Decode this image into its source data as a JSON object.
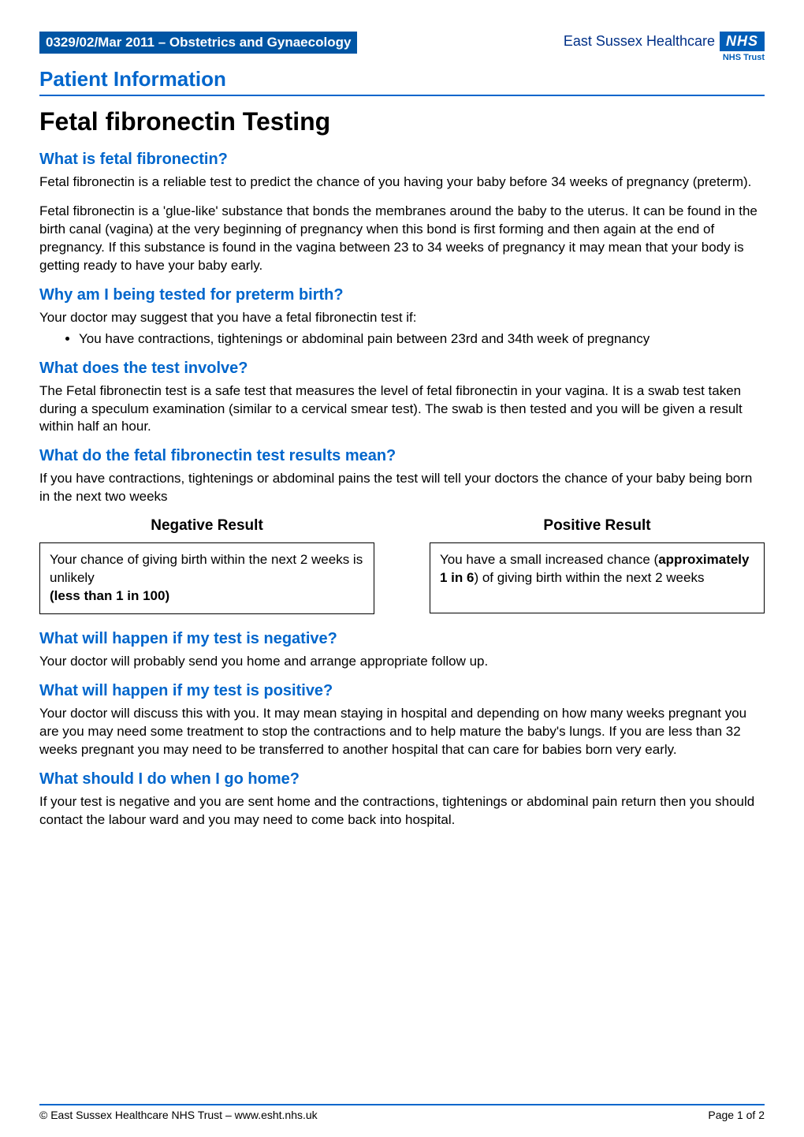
{
  "header": {
    "doc_ref": "0329/02/Mar 2011 – Obstetrics and Gynaecology",
    "logo_text": "East Sussex Healthcare",
    "nhs_label": "NHS",
    "nhs_trust": "NHS Trust",
    "patient_info": "Patient Information"
  },
  "title": "Fetal fibronectin Testing",
  "sections": {
    "what_is": {
      "heading": "What is fetal fibronectin?",
      "p1": "Fetal fibronectin is a reliable test to predict the chance of you having your baby before 34 weeks of pregnancy (preterm).",
      "p2": "Fetal fibronectin is a 'glue-like' substance that bonds the membranes around the baby to the uterus. It can be found in the birth canal (vagina) at the very beginning of pregnancy when this bond is first forming and then again at the end of pregnancy.  If this substance is found in the vagina between 23 to 34 weeks of pregnancy it may mean that your body is getting ready to have your baby early."
    },
    "why_tested": {
      "heading": "Why am I being tested for preterm birth?",
      "intro": "Your doctor may suggest that you have a fetal fibronectin test if:",
      "bullet1": "You have contractions, tightenings or abdominal pain between 23rd and 34th week of pregnancy"
    },
    "test_involve": {
      "heading": "What does the test involve?",
      "p1": "The Fetal fibronectin test is a safe test that measures the level of fetal fibronectin in your vagina. It is a swab test taken during a speculum examination (similar to a cervical smear test). The swab is then tested and you will be given a result within half an hour."
    },
    "results_mean": {
      "heading": "What do the fetal fibronectin test results mean?",
      "intro": "If you have contractions, tightenings or abdominal pains the test will tell your doctors the chance of your baby being born in the next two weeks"
    },
    "results": {
      "negative": {
        "heading": "Negative Result",
        "line1": "Your chance of giving birth within the next 2 weeks is unlikely",
        "line2_bold": "(less than 1 in 100)"
      },
      "positive": {
        "heading": "Positive Result",
        "line1_pre": "You have a small increased chance (",
        "line1_bold": "approximately 1 in 6",
        "line1_post": ") of giving birth within the next 2 weeks"
      }
    },
    "if_negative": {
      "heading": "What will happen if my test is negative?",
      "p1": "Your doctor will probably send you home and arrange appropriate follow up."
    },
    "if_positive": {
      "heading": "What will happen if my test is positive?",
      "p1": "Your doctor will discuss this with you. It may mean staying in hospital and depending on how many weeks pregnant you are you may need some treatment to stop the contractions and to help mature the baby's lungs. If you are less than 32 weeks pregnant you may need to be transferred to another hospital that can care for babies born very early."
    },
    "go_home": {
      "heading": "What should I do when I go home?",
      "p1": "If your test is negative and you are sent home and the contractions, tightenings or abdominal pain return then you should contact the labour ward and you may need to come back into hospital."
    }
  },
  "footer": {
    "copyright": "© East Sussex Healthcare NHS Trust – www.esht.nhs.uk",
    "page": "Page 1 of 2"
  },
  "colors": {
    "heading_blue": "#0066cc",
    "ref_bg": "#0055a4",
    "nhs_blue": "#005eb8",
    "logo_text": "#003087"
  }
}
